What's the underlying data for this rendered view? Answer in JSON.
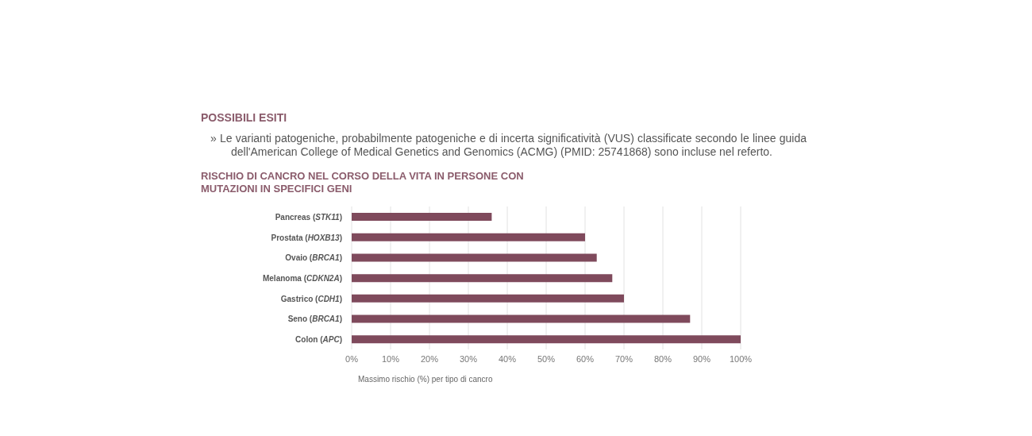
{
  "chart_data": {
    "type": "bar",
    "orientation": "horizontal",
    "title": "RISCHIO DI CANCRO NEL CORSO DELLA VITA IN PERSONE CON MUTAZIONI IN SPECIFICI GENI",
    "annotations": [
      "POSSIBILI ESITI",
      "» Le varianti patogeniche, probabilmente patogeniche e di incerta significatività (VUS) classificate secondo le linee guida dell'American College of Medical Genetics and Genomics (ACMG) (PMID: 25741868) sono incluse nel referto."
    ],
    "xlabel": "Massimo rischio (%) per tipo di cancro",
    "categories": [
      "Pancreas (STK11)",
      "Prostata (HOXB13)",
      "Ovaio (BRCA1)",
      "Melanoma (CDKN2A)",
      "Gastrico (CDH1)",
      "Seno (BRCA1)",
      "Colon (APC)"
    ],
    "values": [
      36,
      60,
      63,
      67,
      70,
      87,
      100
    ],
    "color": "#7f4a5c",
    "xlim": [
      0,
      100
    ],
    "xticks": [
      {
        "value": 0,
        "label": "0%"
      },
      {
        "value": 10,
        "label": "10%"
      },
      {
        "value": 20,
        "label": "20%"
      },
      {
        "value": 30,
        "label": "30%"
      },
      {
        "value": 40,
        "label": "40%"
      },
      {
        "value": 50,
        "label": "50%"
      },
      {
        "value": 60,
        "label": "60%"
      },
      {
        "value": 70,
        "label": "70%"
      },
      {
        "value": 80,
        "label": "80%"
      },
      {
        "value": 90,
        "label": "90%"
      },
      {
        "value": 100,
        "label": "100%"
      }
    ],
    "grid": "x",
    "legend": false
  }
}
